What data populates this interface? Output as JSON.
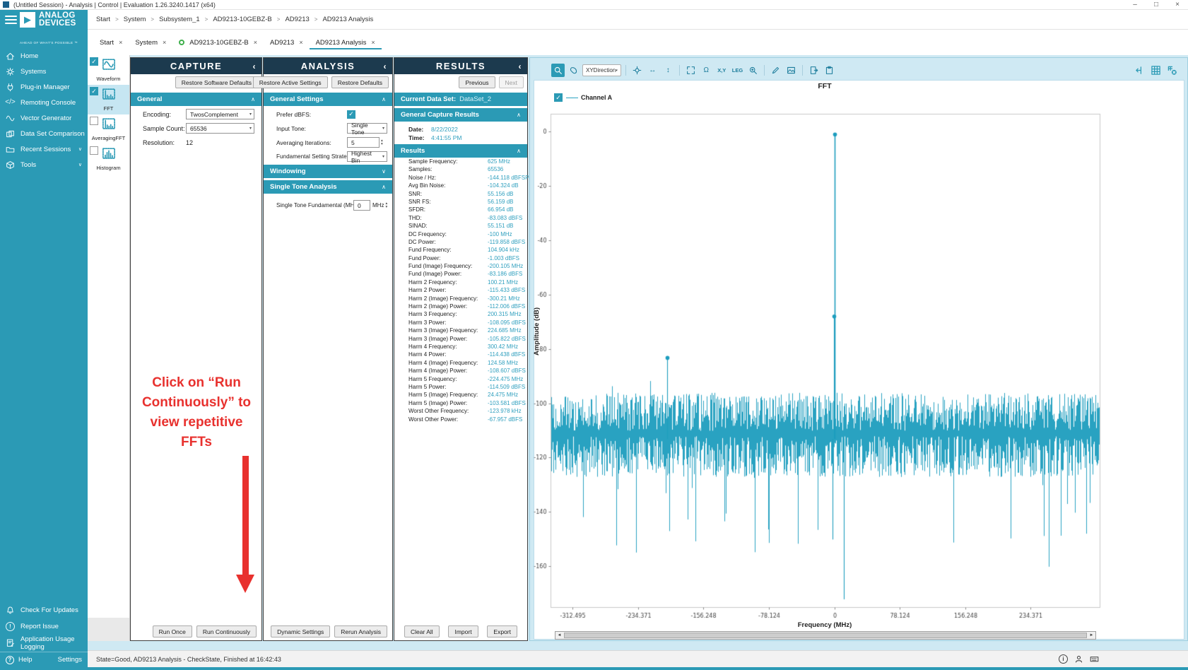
{
  "window": {
    "title": "(Untitled Session) - Analysis | Control | Evaluation 1.26.3240.1417  (x64)",
    "controls": [
      {
        "name": "minimize-icon"
      },
      {
        "name": "maximize-icon"
      },
      {
        "name": "close-icon"
      }
    ]
  },
  "breadcrumb": {
    "items": [
      "Start",
      "System",
      "Subsystem_1",
      "AD9213-10GEBZ-B",
      "AD9213",
      "AD9213 Analysis"
    ],
    "separator": ">"
  },
  "tabs": {
    "items": [
      {
        "label": "Start"
      },
      {
        "label": "System"
      },
      {
        "label": "AD9213-10GEBZ-B",
        "dot": true
      },
      {
        "label": "AD9213"
      },
      {
        "label": "AD9213 Analysis",
        "active": true
      }
    ]
  },
  "sidebar": {
    "brand": {
      "line1": "ANALOG",
      "line2": "DEVICES",
      "tagline": "AHEAD OF WHAT'S POSSIBLE ™"
    },
    "nav": [
      {
        "label": "Home",
        "icon": "home-icon"
      },
      {
        "label": "Systems",
        "icon": "systems-icon"
      },
      {
        "label": "Plug-in Manager",
        "icon": "plugin-icon"
      },
      {
        "label": "Remoting Console",
        "icon": "console-icon"
      },
      {
        "label": "Vector Generator",
        "icon": "waveform-icon"
      },
      {
        "label": "Data Set Comparison",
        "icon": "compare-icon"
      },
      {
        "label": "Recent Sessions",
        "icon": "folder-icon",
        "expandable": true
      },
      {
        "label": "Tools",
        "icon": "tools-icon",
        "expandable": true
      }
    ],
    "footer": [
      {
        "label": "Check For Updates",
        "icon": "bell-icon"
      },
      {
        "label": "Report Issue",
        "icon": "report-icon"
      },
      {
        "label": "Application Usage Logging",
        "icon": "logging-icon"
      }
    ],
    "help": {
      "label": "Help",
      "icon": "help-icon"
    },
    "settings": {
      "label": "Settings",
      "icon": "settings-icon"
    }
  },
  "tool_strip": {
    "items": [
      {
        "label": "Waveform",
        "icon": "waveform-thumb-icon",
        "checked": true,
        "selected": false
      },
      {
        "label": "FFT",
        "icon": "fft-thumb-icon",
        "checked": true,
        "selected": true
      },
      {
        "label": "AveragingFFT",
        "icon": "fft-thumb-icon",
        "checked": false,
        "selected": false
      },
      {
        "label": "Histogram",
        "icon": "histogram-thumb-icon",
        "checked": false,
        "selected": false
      }
    ]
  },
  "capture": {
    "title": "CAPTURE",
    "restore_button": "Restore Software Defaults",
    "section_general": "General",
    "fields": {
      "encoding_label": "Encoding:",
      "encoding_value": "TwosComplement",
      "sample_count_label": "Sample Count:",
      "sample_count_value": "65536",
      "resolution_label": "Resolution:",
      "resolution_value": "12"
    },
    "run_once": "Run Once",
    "run_continuously": "Run Continuously"
  },
  "analysis": {
    "title": "ANALYSIS",
    "restore_active": "Restore Active Settings",
    "restore_defaults": "Restore Defaults",
    "section_general": "General Settings",
    "fields": {
      "prefer_dbfs_label": "Prefer dBFS:",
      "prefer_dbfs_checked": true,
      "input_tone_label": "Input Tone:",
      "input_tone_value": "Single Tone",
      "averaging_label": "Averaging Iterations:",
      "averaging_value": "5",
      "strategy_label": "Fundamental Setting Strategy:",
      "strategy_value": "Highest Bin"
    },
    "section_windowing": "Windowing",
    "section_single_tone": "Single Tone Analysis",
    "single_tone_label": "Single Tone Fundamental (MHz):",
    "single_tone_value": "0",
    "single_tone_unit": "MHz",
    "dynamic_settings": "Dynamic Settings",
    "rerun_analysis": "Rerun Analysis"
  },
  "results": {
    "title": "RESULTS",
    "previous": "Previous",
    "next": "Next",
    "current_data_set_label": "Current Data Set:",
    "current_data_set_value": "DataSet_2",
    "section_capture": "General Capture Results",
    "date_label": "Date:",
    "date_value": "8/22/2022",
    "time_label": "Time:",
    "time_value": "4:41:55 PM",
    "section_results": "Results",
    "rows": [
      {
        "label": "Sample Frequency:",
        "value": "625 MHz"
      },
      {
        "label": "Samples:",
        "value": "65536"
      },
      {
        "label": "Noise / Hz:",
        "value": "-144.118 dBFSPerHz"
      },
      {
        "label": "Avg Bin Noise:",
        "value": "-104.324 dB"
      },
      {
        "label": "SNR:",
        "value": "55.156 dB"
      },
      {
        "label": "SNR FS:",
        "value": "56.159 dB"
      },
      {
        "label": "SFDR:",
        "value": "66.954 dB"
      },
      {
        "label": "THD:",
        "value": "-83.083 dBFS"
      },
      {
        "label": "SINAD:",
        "value": "55.151 dB"
      },
      {
        "label": "DC Frequency:",
        "value": "-100 MHz"
      },
      {
        "label": "DC Power:",
        "value": "-119.858 dBFS"
      },
      {
        "label": "Fund Frequency:",
        "value": "104.904 kHz"
      },
      {
        "label": "Fund Power:",
        "value": "-1.003 dBFS"
      },
      {
        "label": "Fund (Image) Frequency:",
        "value": "-200.105 MHz"
      },
      {
        "label": "Fund (Image) Power:",
        "value": "-83.186 dBFS"
      },
      {
        "label": "Harm 2 Frequency:",
        "value": "100.21 MHz"
      },
      {
        "label": "Harm 2 Power:",
        "value": "-115.433 dBFS"
      },
      {
        "label": "Harm 2 (Image) Frequency:",
        "value": "-300.21 MHz"
      },
      {
        "label": "Harm 2 (Image) Power:",
        "value": "-112.006 dBFS"
      },
      {
        "label": "Harm 3 Frequency:",
        "value": "200.315 MHz"
      },
      {
        "label": "Harm 3 Power:",
        "value": "-108.095 dBFS"
      },
      {
        "label": "Harm 3 (Image) Frequency:",
        "value": "224.685 MHz"
      },
      {
        "label": "Harm 3 (Image) Power:",
        "value": "-105.822 dBFS"
      },
      {
        "label": "Harm 4 Frequency:",
        "value": "300.42 MHz"
      },
      {
        "label": "Harm 4 Power:",
        "value": "-114.438 dBFS"
      },
      {
        "label": "Harm 4 (Image) Frequency:",
        "value": "124.58 MHz"
      },
      {
        "label": "Harm 4 (Image) Power:",
        "value": "-108.607 dBFS"
      },
      {
        "label": "Harm 5 Frequency:",
        "value": "-224.475 MHz"
      },
      {
        "label": "Harm 5 Power:",
        "value": "-114.509 dBFS"
      },
      {
        "label": "Harm 5 (Image) Frequency:",
        "value": "24.475 MHz"
      },
      {
        "label": "Harm 5 (Image) Power:",
        "value": "-103.581 dBFS"
      },
      {
        "label": "Worst Other Frequency:",
        "value": "-123.978 kHz"
      },
      {
        "label": "Worst Other Power:",
        "value": "-67.957 dBFS"
      }
    ],
    "clear_all": "Clear All",
    "import": "Import",
    "export": "Export"
  },
  "annotation": {
    "lines": [
      "Click on “Run",
      "Continuously” to",
      "view repetitive",
      "FFTs"
    ],
    "color": "#e8312e"
  },
  "chart_toolbar": {
    "left_icons": [
      {
        "name": "zoom-select-icon",
        "active": true
      },
      {
        "name": "pan-icon"
      },
      {
        "name": "xydirection-button",
        "text": "XYDirection",
        "boxed": true,
        "dropdown": true
      },
      {
        "sep": true
      },
      {
        "name": "center-icon"
      },
      {
        "name": "fit-horizontal-icon",
        "text": "↔"
      },
      {
        "name": "fit-vertical-icon",
        "text": "↕"
      },
      {
        "sep": true
      },
      {
        "name": "fit-all-icon"
      },
      {
        "name": "undo-zoom-icon",
        "text": "Ω"
      },
      {
        "name": "xy-values-button",
        "text": "X,Y",
        "small": true
      },
      {
        "name": "legend-toggle-button",
        "text": "LEG",
        "small": true
      },
      {
        "name": "zoom-window-icon"
      },
      {
        "sep": true
      },
      {
        "name": "annotate-icon"
      },
      {
        "name": "snapshot-icon"
      },
      {
        "sep": true
      },
      {
        "name": "export-icon"
      },
      {
        "name": "clipboard-icon"
      }
    ],
    "right_icons": [
      {
        "name": "collapse-panel-icon"
      },
      {
        "name": "grid-icon"
      },
      {
        "name": "snap-grid-icon"
      }
    ]
  },
  "chart_data": {
    "type": "line",
    "title": "FFT",
    "xlabel": "Frequency (MHz)",
    "ylabel": "Amplitude (dB)",
    "xlim": [
      -339,
      317
    ],
    "ylim": [
      -175,
      6.5
    ],
    "xticks": [
      -312.495,
      -234.371,
      -156.248,
      -78.124,
      0,
      78.124,
      156.248,
      234.371
    ],
    "yticks": [
      0,
      -20,
      -40,
      -60,
      -80,
      -100,
      -120,
      -140,
      -160
    ],
    "legend": [
      {
        "label": "Channel A",
        "checked": true
      }
    ],
    "line_color": "#1d9dbe",
    "grid": false,
    "legend_position": "top-left",
    "noise_floor": {
      "top_db_min": -110,
      "top_db_max": -96,
      "bottom_db_min": -127,
      "bottom_db_max": -112,
      "deep_spike_prob": 0.05,
      "deep_spike_extra_db": 38
    },
    "peaks": [
      {
        "name": "fundamental",
        "freq_mhz": 0.105,
        "power_db": -1.003,
        "marker": true
      },
      {
        "name": "worst-other",
        "freq_mhz": -0.124,
        "power_db": -67.957,
        "marker": true
      },
      {
        "name": "fund-image",
        "freq_mhz": -200.105,
        "power_db": -83.186,
        "marker": true
      },
      {
        "name": "dc-notch",
        "freq_mhz": 11,
        "power_db": -172,
        "down": true
      },
      {
        "name": "notch-2",
        "freq_mhz": -2.5,
        "power_db": -150,
        "down": true
      }
    ]
  },
  "status_bar": {
    "text": "State=Good, AD9213 Analysis - CheckState, Finished at 16:42:43",
    "icons": [
      {
        "name": "info-icon"
      },
      {
        "name": "account-icon"
      },
      {
        "name": "keyboard-icon"
      }
    ]
  },
  "colors": {
    "accent": "#2b9ab5",
    "panel_header": "#1c3a4e",
    "value_text": "#2f9fbe",
    "chart_line": "#1d9dbe",
    "annotation_red": "#e8312e",
    "selected_bg": "#c6e6f2",
    "tab_dot_green": "#3faf4c"
  }
}
